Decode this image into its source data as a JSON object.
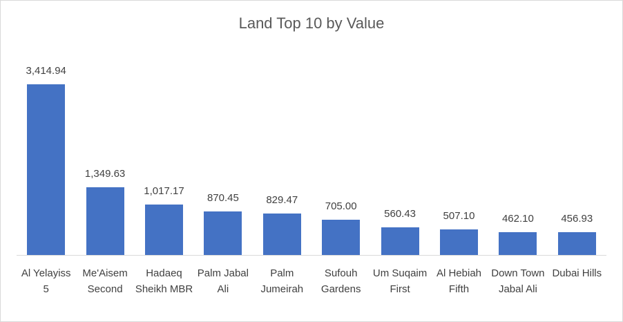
{
  "chart_data": {
    "type": "bar",
    "title": "Land Top 10 by Value",
    "categories": [
      "Al Yelayiss 5",
      "Me'Aisem Second",
      "Hadaeq Sheikh MBR",
      "Palm Jabal Ali",
      "Palm Jumeirah",
      "Sufouh Gardens",
      "Um Suqaim First",
      "Al Hebiah Fifth",
      "Down Town Jabal Ali",
      "Dubai Hills"
    ],
    "values": [
      3414.94,
      1349.63,
      1017.17,
      870.45,
      829.47,
      705.0,
      560.43,
      507.1,
      462.1,
      456.93
    ],
    "value_labels": [
      "3,414.94",
      "1,349.63",
      "1,017.17",
      "870.45",
      "829.47",
      "705.00",
      "560.43",
      "507.10",
      "462.10",
      "456.93"
    ],
    "color": "#4472c4",
    "ylim": [
      0,
      4000
    ]
  }
}
